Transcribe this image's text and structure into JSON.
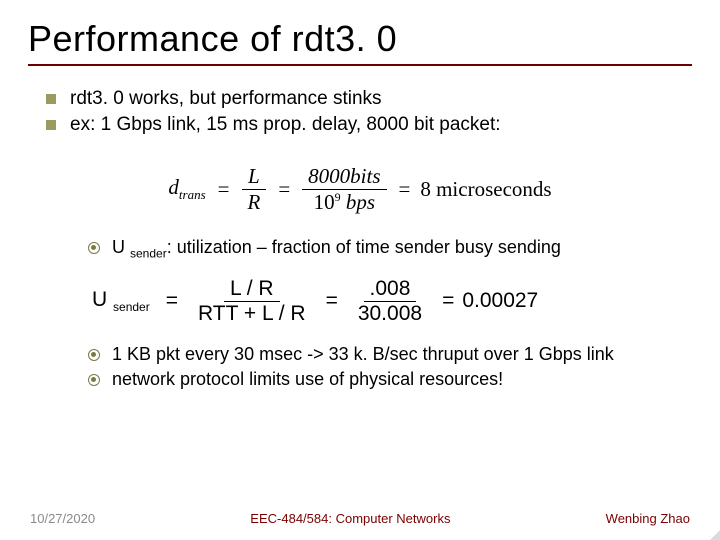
{
  "title": "Performance of rdt3. 0",
  "bullets_l1": [
    "rdt3. 0 works, but performance stinks",
    "ex: 1 Gbps link, 15 ms prop. delay, 8000 bit packet:"
  ],
  "eq_dtrans": {
    "lhs_d": "d",
    "lhs_sub": "trans",
    "frac1_num": "L",
    "frac1_den": "R",
    "frac2_num_val": "8000",
    "frac2_num_unit": "bits",
    "frac2_den_base": "10",
    "frac2_den_exp": "9",
    "frac2_den_unit": "bps",
    "result_val": "8",
    "result_unit": "microseconds"
  },
  "bullets_l2a": [
    {
      "pre": "U ",
      "sub": "sender",
      "post": ": utilization – fraction of time sender busy sending"
    }
  ],
  "eq_usender": {
    "lhs_U": "U",
    "lhs_sub": "sender",
    "frac1_num": "L / R",
    "frac1_den": "RTT + L / R",
    "frac2_num": ".008",
    "frac2_den": "30.008",
    "result": "0.00027"
  },
  "bullets_l2b": [
    "1 KB pkt every 30 msec -> 33 k. B/sec thruput over 1 Gbps link",
    "network protocol limits use of physical resources!"
  ],
  "footer": {
    "date": "10/27/2020",
    "course": "EEC-484/584: Computer Networks",
    "author": "Wenbing Zhao"
  },
  "colors": {
    "rule": "#6b0000",
    "bullet_sq": "#9a9a63",
    "bullet_circ": "#7a7a45",
    "footer_gray": "#8a8a8a",
    "footer_red": "#7a0000"
  }
}
